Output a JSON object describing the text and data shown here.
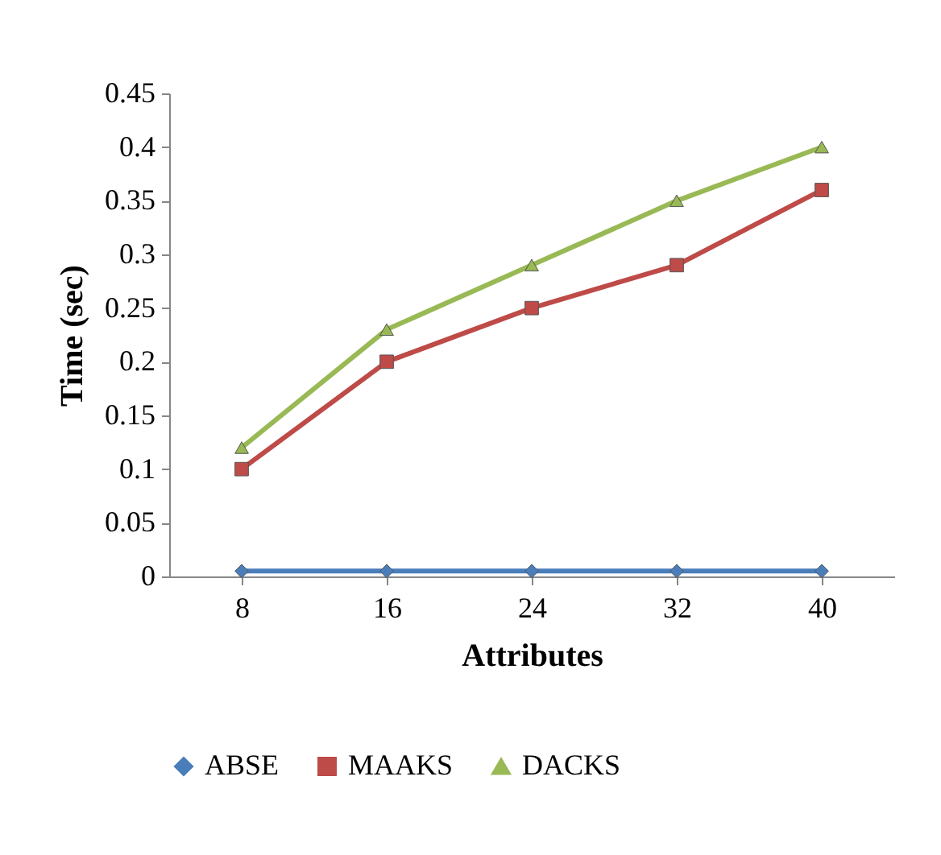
{
  "chart_data": {
    "type": "line",
    "xlabel": "Attributes",
    "ylabel": "Time (sec)",
    "categories": [
      "8",
      "16",
      "24",
      "32",
      "40"
    ],
    "series": [
      {
        "name": "ABSE",
        "color": "#4a7ebb",
        "marker": "diamond",
        "values": [
          0.005,
          0.005,
          0.005,
          0.005,
          0.005
        ]
      },
      {
        "name": "MAAKS",
        "color": "#be4b48",
        "marker": "square",
        "values": [
          0.1,
          0.2,
          0.25,
          0.29,
          0.36
        ]
      },
      {
        "name": "DACKS",
        "color": "#98b954",
        "marker": "triangle",
        "values": [
          0.12,
          0.23,
          0.29,
          0.35,
          0.4
        ]
      }
    ],
    "ylim": [
      0,
      0.45
    ],
    "yticks": [
      0,
      0.05,
      0.1,
      0.15,
      0.2,
      0.25,
      0.3,
      0.35,
      0.4,
      0.45
    ],
    "grid": false,
    "legend": "bottom",
    "line_style": "solid"
  }
}
